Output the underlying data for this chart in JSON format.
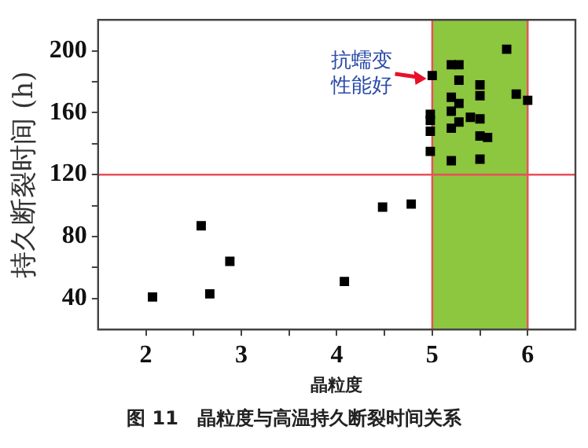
{
  "chart_data": {
    "type": "scatter",
    "xlabel": "晶粒度",
    "ylabel": "持久断裂时间 (h)",
    "xlim": [
      1.5,
      6.5
    ],
    "ylim": [
      20,
      220
    ],
    "xticks": [
      2,
      {
        "value": 2.5,
        "label": null
      },
      3,
      {
        "value": 3.5,
        "label": null
      },
      4,
      {
        "value": 4.5,
        "label": null
      },
      5,
      {
        "value": 5.5,
        "label": null
      },
      6
    ],
    "yticks": [
      40,
      {
        "value": 60,
        "label": null
      },
      80,
      {
        "value": 100,
        "label": null
      },
      120,
      {
        "value": 140,
        "label": null
      },
      160,
      {
        "value": 180,
        "label": null
      },
      200
    ],
    "grid": false,
    "legend": false,
    "marker": "square",
    "x": [
      2.07,
      2.58,
      2.67,
      2.88,
      4.08,
      4.48,
      4.78,
      5.78,
      5.2,
      5.28,
      5.28,
      5.0,
      5.5,
      5.2,
      5.28,
      5.5,
      5.88,
      6.0,
      5.2,
      4.98,
      4.98,
      5.28,
      5.4,
      5.5,
      5.2,
      4.98,
      5.5,
      5.58,
      4.98,
      5.2,
      5.5
    ],
    "values": [
      41,
      87,
      43,
      64,
      51,
      99,
      101,
      201,
      191,
      191,
      181,
      184,
      178,
      170,
      166,
      171,
      172,
      168,
      161,
      159,
      155,
      154,
      157,
      156,
      150,
      148,
      145,
      144,
      135,
      129,
      130
    ],
    "color": "#000000",
    "bands": [
      {
        "axis": "x",
        "from": 5,
        "to": 6,
        "color": "#8dc63f"
      }
    ],
    "ref_lines": [
      {
        "axis": "x",
        "value": 5,
        "color": "#e8505b"
      },
      {
        "axis": "x",
        "value": 6,
        "color": "#e8505b"
      },
      {
        "axis": "y",
        "value": 120,
        "color": "#e8505b"
      }
    ],
    "annotations": [
      {
        "text": "抗蠕变性能好",
        "x": 4.94,
        "y": 181
      },
      "图 11　晶粒度与高温持久断裂时间关系"
    ]
  }
}
